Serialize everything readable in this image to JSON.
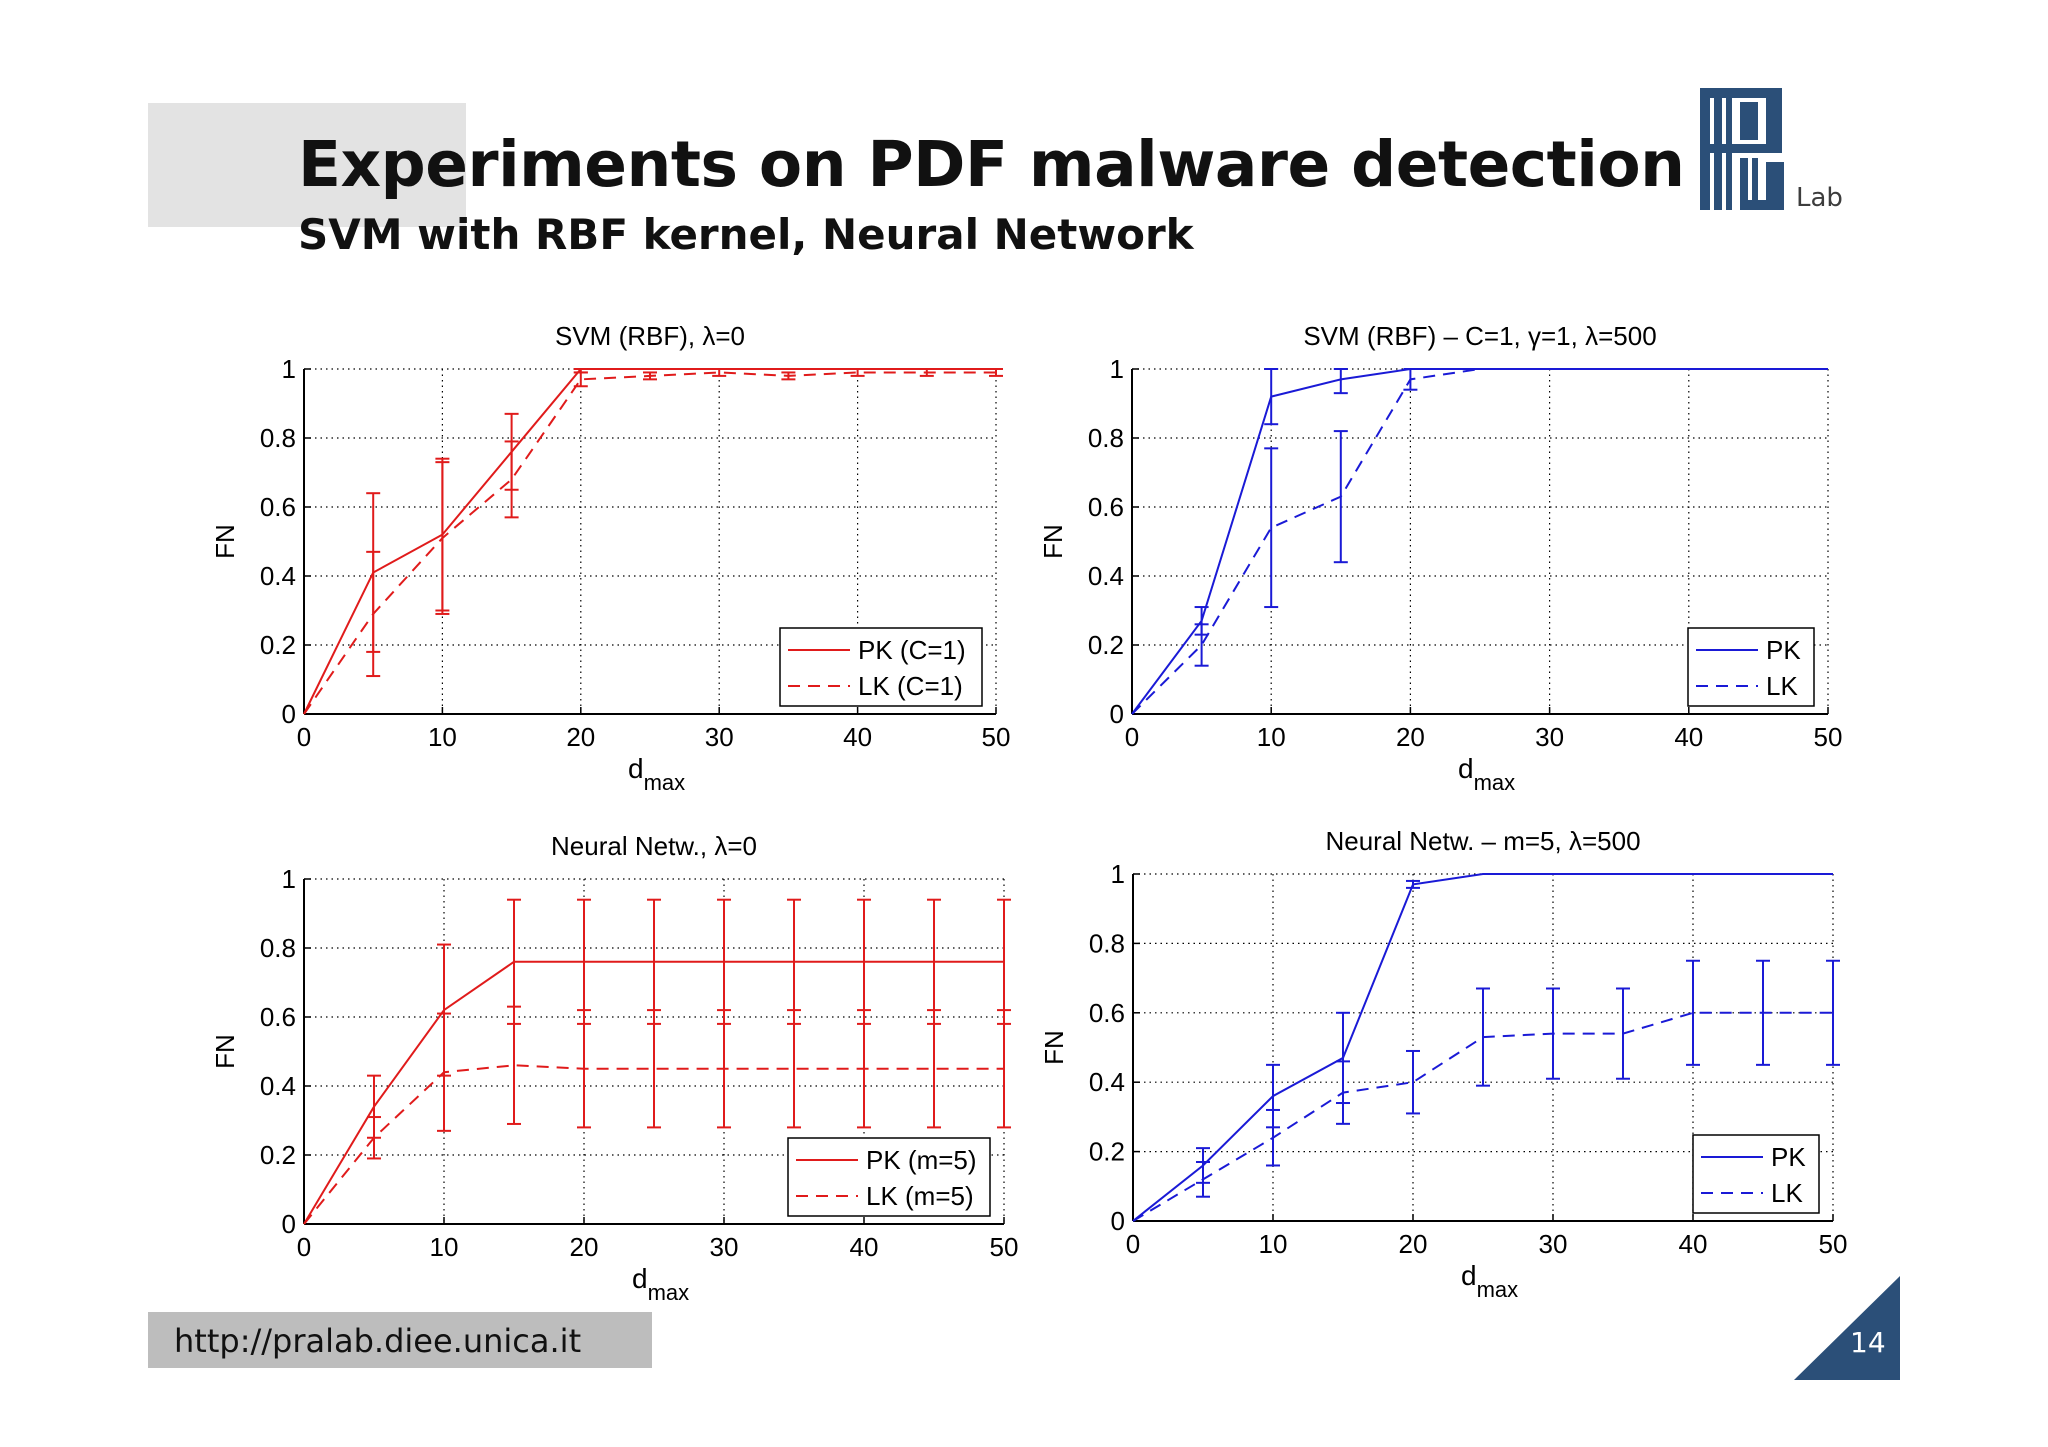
{
  "slide": {
    "title": "Experiments on PDF malware detection",
    "subtitle": "SVM with RBF kernel, Neural Network",
    "logo_text": "Lab",
    "footer_url": "http://pralab.diee.unica.it",
    "page_number": "14",
    "accent_color": "#2b4f78"
  },
  "chart_data": [
    {
      "type": "line",
      "title": "SVM (RBF), λ=0",
      "xlabel": "d",
      "xlabel_sub": "max",
      "ylabel": "FN",
      "xlim": [
        0,
        50
      ],
      "ylim": [
        0,
        1
      ],
      "xticks": [
        0,
        10,
        20,
        30,
        40,
        50
      ],
      "yticks": [
        0,
        0.2,
        0.4,
        0.6,
        0.8,
        1
      ],
      "grid": true,
      "legend_position": "bottom-right",
      "color": "#e01b1b",
      "x": [
        0,
        5,
        10,
        15,
        20,
        25,
        30,
        35,
        40,
        45,
        50
      ],
      "series": [
        {
          "name": "PK (C=1)",
          "style": "solid",
          "values": [
            0,
            0.41,
            0.52,
            0.76,
            1,
            1,
            1,
            1,
            1,
            1,
            1
          ],
          "error": [
            0,
            0.23,
            0.22,
            0.11,
            0.01,
            0,
            0,
            0,
            0,
            0,
            0
          ]
        },
        {
          "name": "LK (C=1)",
          "style": "dashed",
          "values": [
            0,
            0.29,
            0.51,
            0.68,
            0.97,
            0.98,
            0.99,
            0.98,
            0.99,
            0.99,
            0.99
          ],
          "error": [
            0,
            0.18,
            0.22,
            0.11,
            0.02,
            0.01,
            0.01,
            0.01,
            0.01,
            0.01,
            0.01
          ]
        }
      ]
    },
    {
      "type": "line",
      "title": "SVM (RBF) – C=1, γ=1, λ=500",
      "xlabel": "d",
      "xlabel_sub": "max",
      "ylabel": "FN",
      "xlim": [
        0,
        50
      ],
      "ylim": [
        0,
        1
      ],
      "xticks": [
        0,
        10,
        20,
        30,
        40,
        50
      ],
      "yticks": [
        0,
        0.2,
        0.4,
        0.6,
        0.8,
        1
      ],
      "grid": true,
      "legend_position": "bottom-right",
      "color": "#1a1ad6",
      "x": [
        0,
        5,
        10,
        15,
        20,
        25,
        30,
        35,
        40,
        45,
        50
      ],
      "series": [
        {
          "name": "PK",
          "style": "solid",
          "values": [
            0,
            0.27,
            0.92,
            0.97,
            1,
            1,
            1,
            1,
            1,
            1,
            1
          ],
          "error": [
            0,
            0.04,
            0.08,
            0.04,
            0,
            0,
            0,
            0,
            0,
            0,
            0
          ]
        },
        {
          "name": "LK",
          "style": "dashed",
          "values": [
            0,
            0.2,
            0.54,
            0.63,
            0.97,
            1,
            1,
            1,
            1,
            1,
            1
          ],
          "error": [
            0,
            0.06,
            0.23,
            0.19,
            0.03,
            0,
            0,
            0,
            0,
            0,
            0
          ]
        }
      ]
    },
    {
      "type": "line",
      "title": "Neural Netw., λ=0",
      "xlabel": "d",
      "xlabel_sub": "max",
      "ylabel": "FN",
      "xlim": [
        0,
        50
      ],
      "ylim": [
        0,
        1
      ],
      "xticks": [
        0,
        10,
        20,
        30,
        40,
        50
      ],
      "yticks": [
        0,
        0.2,
        0.4,
        0.6,
        0.8,
        1
      ],
      "grid": true,
      "legend_position": "bottom-right",
      "color": "#e01b1b",
      "x": [
        0,
        5,
        10,
        15,
        20,
        25,
        30,
        35,
        40,
        45,
        50
      ],
      "series": [
        {
          "name": "PK (m=5)",
          "style": "solid",
          "values": [
            0,
            0.34,
            0.62,
            0.76,
            0.76,
            0.76,
            0.76,
            0.76,
            0.76,
            0.76,
            0.76
          ],
          "error": [
            0,
            0.09,
            0.19,
            0.18,
            0.18,
            0.18,
            0.18,
            0.18,
            0.18,
            0.18,
            0.18
          ]
        },
        {
          "name": "LK (m=5)",
          "style": "dashed",
          "values": [
            0,
            0.25,
            0.44,
            0.46,
            0.45,
            0.45,
            0.45,
            0.45,
            0.45,
            0.45,
            0.45
          ],
          "error": [
            0,
            0.06,
            0.17,
            0.17,
            0.17,
            0.17,
            0.17,
            0.17,
            0.17,
            0.17,
            0.17
          ]
        }
      ]
    },
    {
      "type": "line",
      "title": "Neural Netw. – m=5, λ=500",
      "xlabel": "d",
      "xlabel_sub": "max",
      "ylabel": "FN",
      "xlim": [
        0,
        50
      ],
      "ylim": [
        0,
        1
      ],
      "xticks": [
        0,
        10,
        20,
        30,
        40,
        50
      ],
      "yticks": [
        0,
        0.2,
        0.4,
        0.6,
        0.8,
        1
      ],
      "grid": true,
      "legend_position": "bottom-right",
      "color": "#1a1ad6",
      "x": [
        0,
        5,
        10,
        15,
        20,
        25,
        30,
        35,
        40,
        45,
        50
      ],
      "series": [
        {
          "name": "PK",
          "style": "solid",
          "values": [
            0,
            0.16,
            0.36,
            0.47,
            0.97,
            1,
            1,
            1,
            1,
            1,
            1
          ],
          "error": [
            0,
            0.05,
            0.09,
            0.13,
            0.01,
            0,
            0,
            0,
            0,
            0,
            0
          ]
        },
        {
          "name": "LK",
          "style": "dashed",
          "values": [
            0,
            0.12,
            0.24,
            0.37,
            0.4,
            0.53,
            0.54,
            0.54,
            0.6,
            0.6,
            0.6
          ],
          "error": [
            0,
            0.05,
            0.08,
            0.09,
            0.09,
            0.14,
            0.13,
            0.13,
            0.15,
            0.15,
            0.15
          ]
        }
      ]
    }
  ]
}
